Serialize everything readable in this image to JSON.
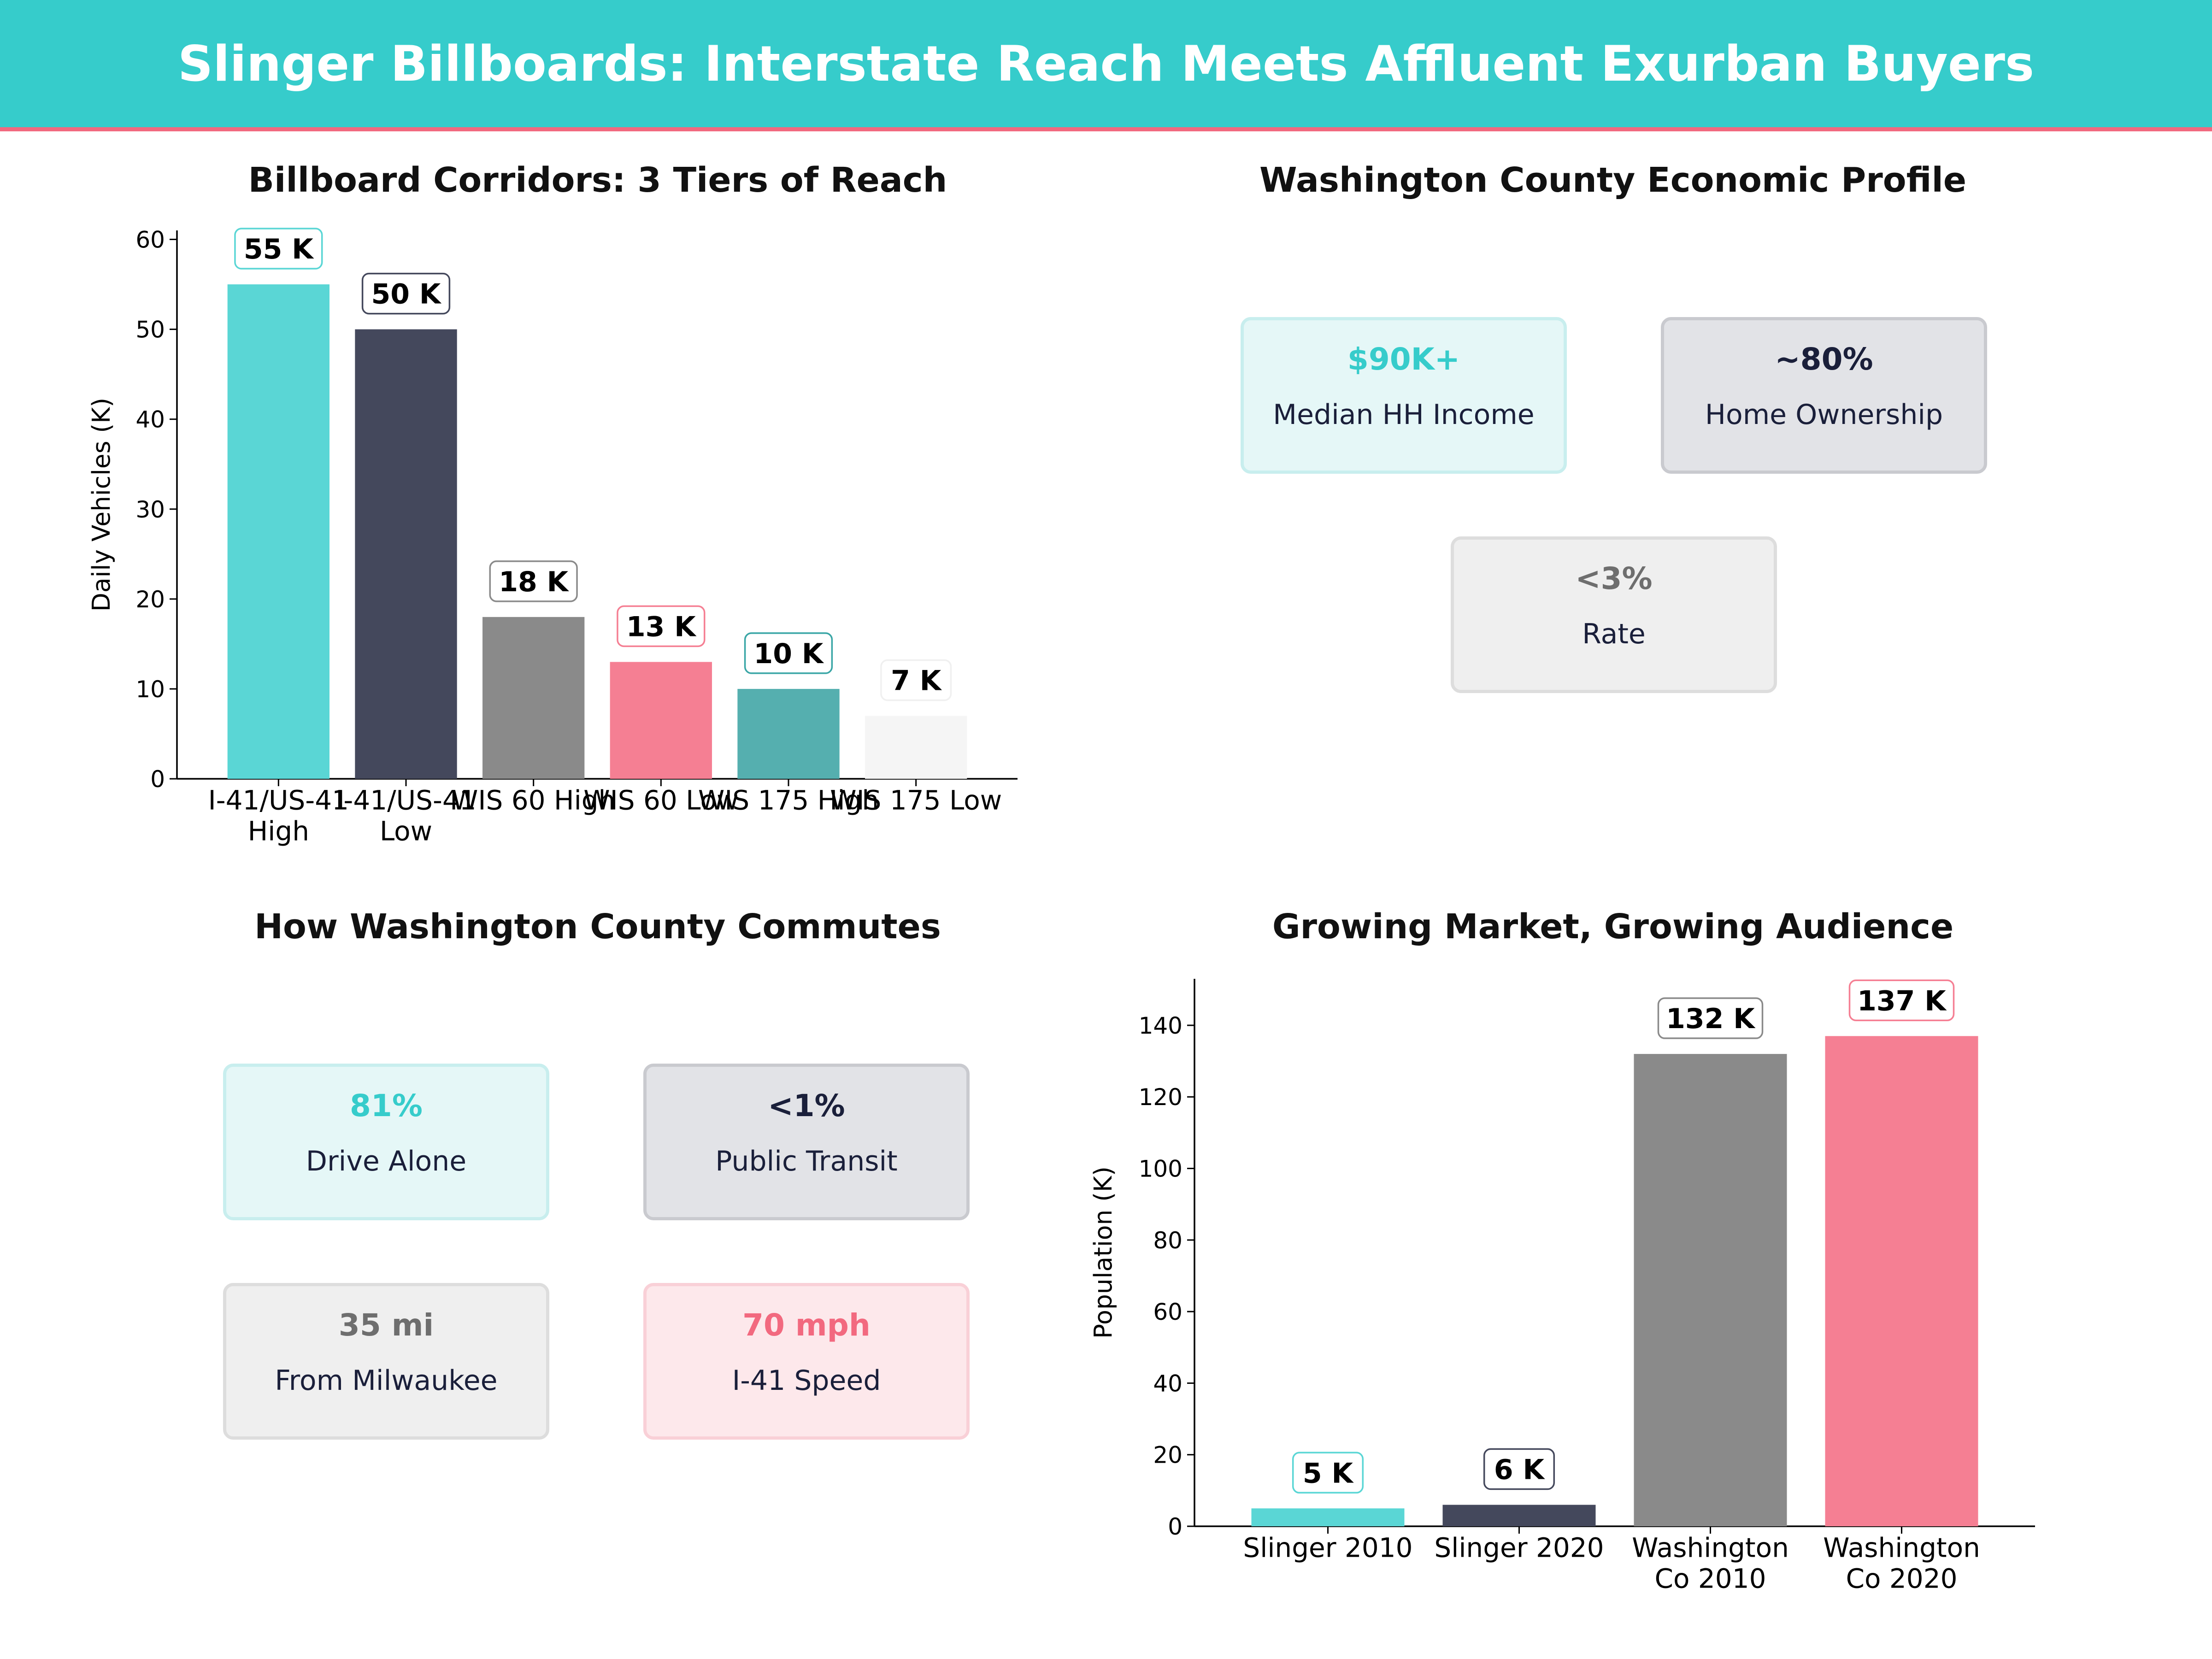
{
  "header": {
    "title": "Slinger Billboards: Interstate Reach Meets Affluent Exurban Buyers"
  },
  "colors": {
    "teal": "#36cccb",
    "navy": "#1a1f3a",
    "gray": "#6e6e6e",
    "pink": "#f2697f",
    "dark_teal": "#3aa6a6",
    "light_gray": "#f0f0f0"
  },
  "chart_data": [
    {
      "type": "bar",
      "title": "Billboard Corridors: 3 Tiers of Reach",
      "xlabel": "",
      "ylabel": "Daily Vehicles (K)",
      "ylim": [
        0,
        61
      ],
      "yticks": [
        0,
        10,
        20,
        30,
        40,
        50,
        60
      ],
      "categories": [
        "I-41/US-41\nHigh",
        "I-41/US-41\nLow",
        "WIS 60 High",
        "WIS 60 Low",
        "WIS 175 High",
        "WIS 175 Low"
      ],
      "values": [
        55,
        50,
        18,
        13,
        10,
        7
      ],
      "data_labels": [
        "55 K",
        "50 K",
        "18 K",
        "13 K",
        "10 K",
        "7 K"
      ],
      "bar_colors": [
        "#5ad6d5",
        "#44485c",
        "#8a8a8a",
        "#f57f93",
        "#55afaf",
        "#f5f5f5"
      ],
      "label_border_colors": [
        "#5ad6d5",
        "#44485c",
        "#8a8a8a",
        "#f57f93",
        "#3aa6a6",
        "#f0f0f0"
      ],
      "grid": false
    },
    {
      "type": "bar",
      "title": "Growing Market, Growing Audience",
      "xlabel": "",
      "ylabel": "Population (K)",
      "ylim": [
        0,
        153
      ],
      "yticks": [
        0,
        20,
        40,
        60,
        80,
        100,
        120,
        140
      ],
      "categories": [
        "Slinger 2010",
        "Slinger 2020",
        "Washington\nCo 2010",
        "Washington\nCo 2020"
      ],
      "values": [
        5,
        6,
        132,
        137
      ],
      "data_labels": [
        "5 K",
        "6 K",
        "132 K",
        "137 K"
      ],
      "bar_colors": [
        "#5ad6d5",
        "#44485c",
        "#8a8a8a",
        "#f57f93"
      ],
      "label_border_colors": [
        "#5ad6d5",
        "#44485c",
        "#8a8a8a",
        "#f57f93"
      ],
      "grid": false
    }
  ],
  "economic_profile": {
    "title": "Washington County Economic Profile",
    "cards": [
      {
        "value": "$90K+",
        "label": "Median HH Income",
        "accent": "#36cccb"
      },
      {
        "value": "~80%",
        "label": "Home Ownership",
        "accent": "#1a1f3a"
      },
      {
        "value": "<3%",
        "label": "Rate",
        "accent": "#6e6e6e"
      }
    ]
  },
  "commute": {
    "title": "How Washington County Commutes",
    "cards": [
      {
        "value": "81%",
        "label": "Drive Alone",
        "accent": "#36cccb"
      },
      {
        "value": "<1%",
        "label": "Public Transit",
        "accent": "#1a1f3a"
      },
      {
        "value": "35 mi",
        "label": "From Milwaukee",
        "accent": "#6e6e6e"
      },
      {
        "value": "70 mph",
        "label": "I-41 Speed",
        "accent": "#f2697f"
      }
    ]
  }
}
